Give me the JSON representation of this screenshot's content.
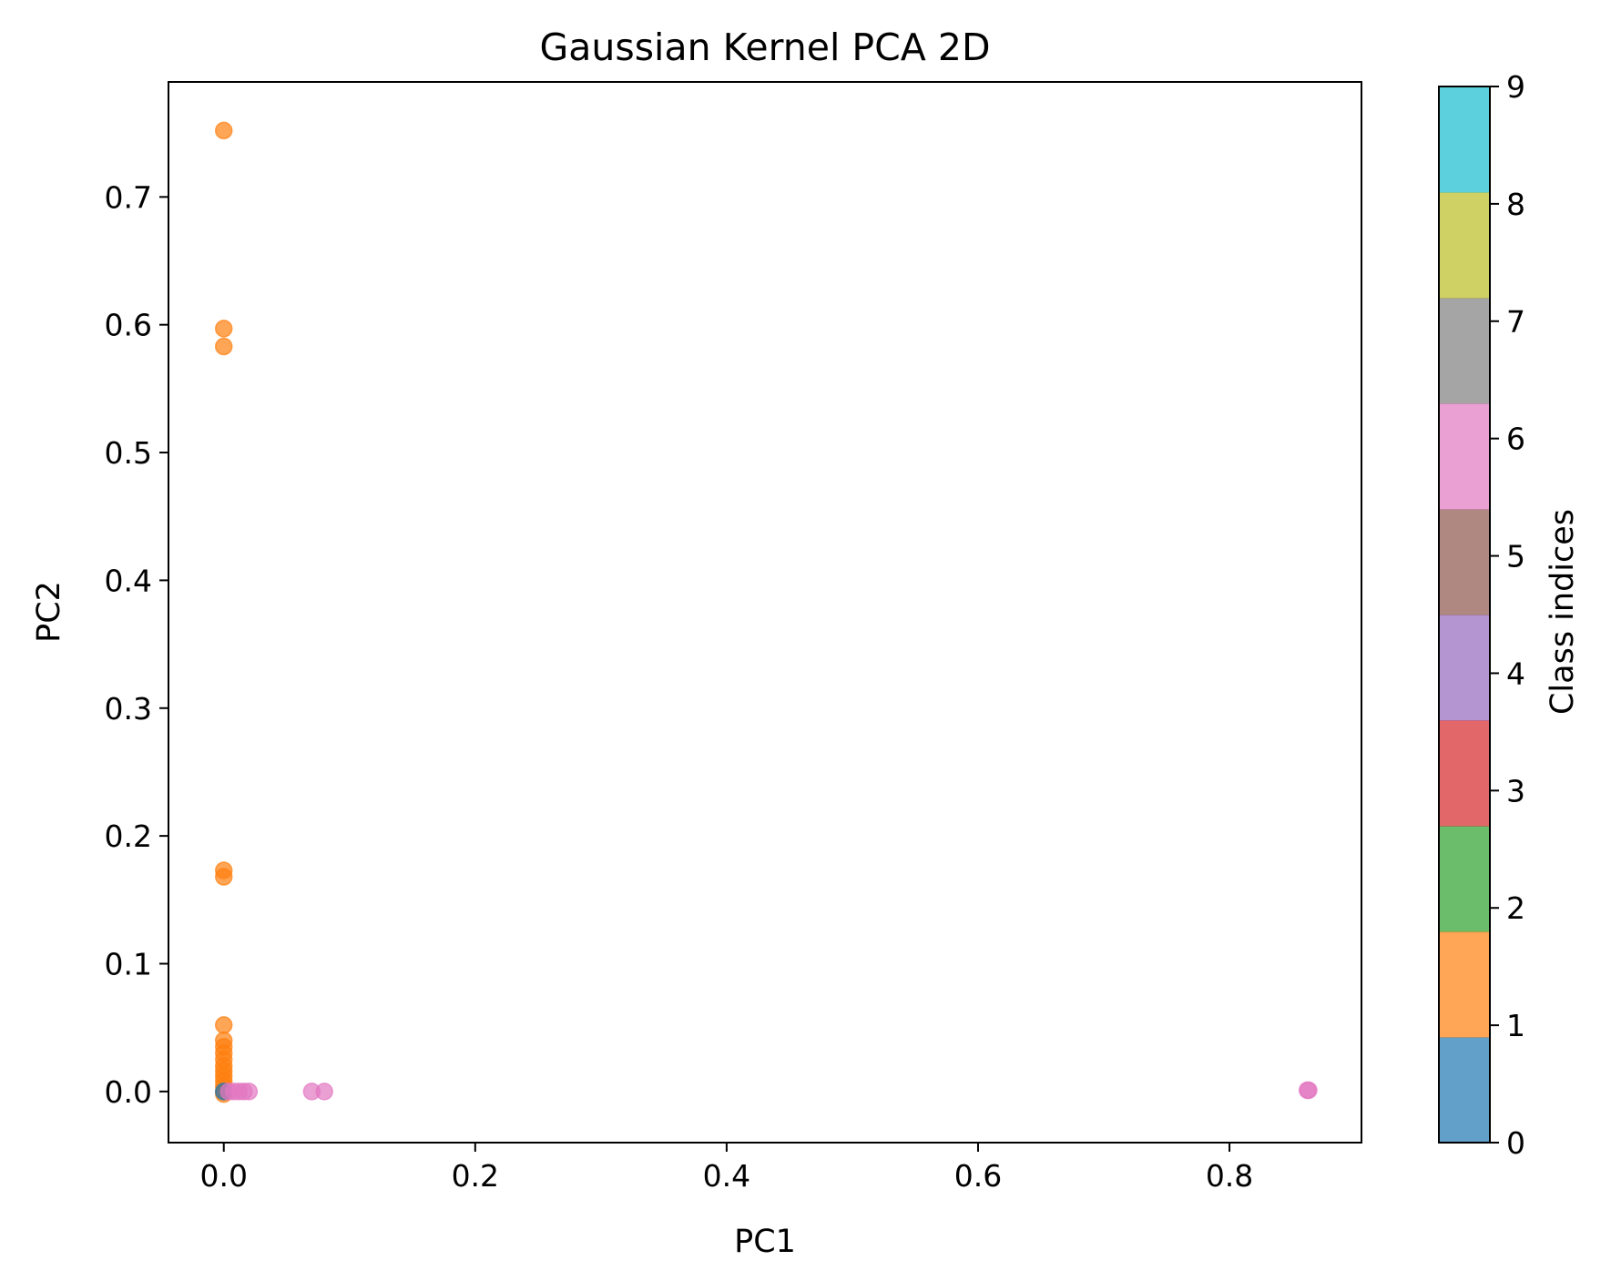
{
  "chart_data": {
    "type": "scatter",
    "title": "Gaussian Kernel PCA 2D",
    "xlabel": "PC1",
    "ylabel": "PC2",
    "xlim": [
      -0.044,
      0.905
    ],
    "ylim": [
      -0.04,
      0.79
    ],
    "x_ticks": [
      "0.0",
      "0.2",
      "0.4",
      "0.6",
      "0.8"
    ],
    "x_tick_values": [
      0.0,
      0.2,
      0.4,
      0.6,
      0.8
    ],
    "y_ticks": [
      "0.0",
      "0.1",
      "0.2",
      "0.3",
      "0.4",
      "0.5",
      "0.6",
      "0.7"
    ],
    "y_tick_values": [
      0.0,
      0.1,
      0.2,
      0.3,
      0.4,
      0.5,
      0.6,
      0.7
    ],
    "grid": false,
    "marker_alpha": 0.7,
    "colorbar": {
      "label": "Class indices",
      "range": [
        0,
        9
      ],
      "ticks": [
        "0",
        "1",
        "2",
        "3",
        "4",
        "5",
        "6",
        "7",
        "8",
        "9"
      ],
      "tick_values": [
        0,
        1,
        2,
        3,
        4,
        5,
        6,
        7,
        8,
        9
      ],
      "colors": [
        "#1f77b4",
        "#ff7f0e",
        "#2ca02c",
        "#d62728",
        "#9467bd",
        "#8c564b",
        "#e377c2",
        "#7f7f7f",
        "#bcbd22",
        "#17becf"
      ]
    },
    "points": [
      {
        "x": 0.0,
        "y": 0.752,
        "class": 1
      },
      {
        "x": 0.0,
        "y": 0.597,
        "class": 1
      },
      {
        "x": 0.0,
        "y": 0.583,
        "class": 1
      },
      {
        "x": 0.0,
        "y": 0.173,
        "class": 1
      },
      {
        "x": 0.0,
        "y": 0.168,
        "class": 1
      },
      {
        "x": 0.0,
        "y": 0.052,
        "class": 1
      },
      {
        "x": 0.0,
        "y": 0.04,
        "class": 1
      },
      {
        "x": 0.0,
        "y": 0.035,
        "class": 1
      },
      {
        "x": 0.0,
        "y": 0.03,
        "class": 1
      },
      {
        "x": 0.0,
        "y": 0.025,
        "class": 1
      },
      {
        "x": 0.0,
        "y": 0.02,
        "class": 1
      },
      {
        "x": 0.0,
        "y": 0.016,
        "class": 1
      },
      {
        "x": 0.0,
        "y": 0.012,
        "class": 1
      },
      {
        "x": 0.0,
        "y": 0.008,
        "class": 1
      },
      {
        "x": 0.0,
        "y": 0.004,
        "class": 1
      },
      {
        "x": 0.0,
        "y": 0.0,
        "class": 1
      },
      {
        "x": 0.0,
        "y": -0.002,
        "class": 1
      },
      {
        "x": 0.0,
        "y": 0.0,
        "class": 0
      },
      {
        "x": 0.004,
        "y": 0.0,
        "class": 6
      },
      {
        "x": 0.008,
        "y": 0.0,
        "class": 6
      },
      {
        "x": 0.012,
        "y": 0.0,
        "class": 6
      },
      {
        "x": 0.016,
        "y": 0.0,
        "class": 6
      },
      {
        "x": 0.02,
        "y": 0.0,
        "class": 6
      },
      {
        "x": 0.07,
        "y": 0.0,
        "class": 6
      },
      {
        "x": 0.08,
        "y": 0.0,
        "class": 6
      },
      {
        "x": 0.862,
        "y": 0.001,
        "class": 6
      },
      {
        "x": 0.863,
        "y": 0.001,
        "class": 6
      }
    ]
  }
}
